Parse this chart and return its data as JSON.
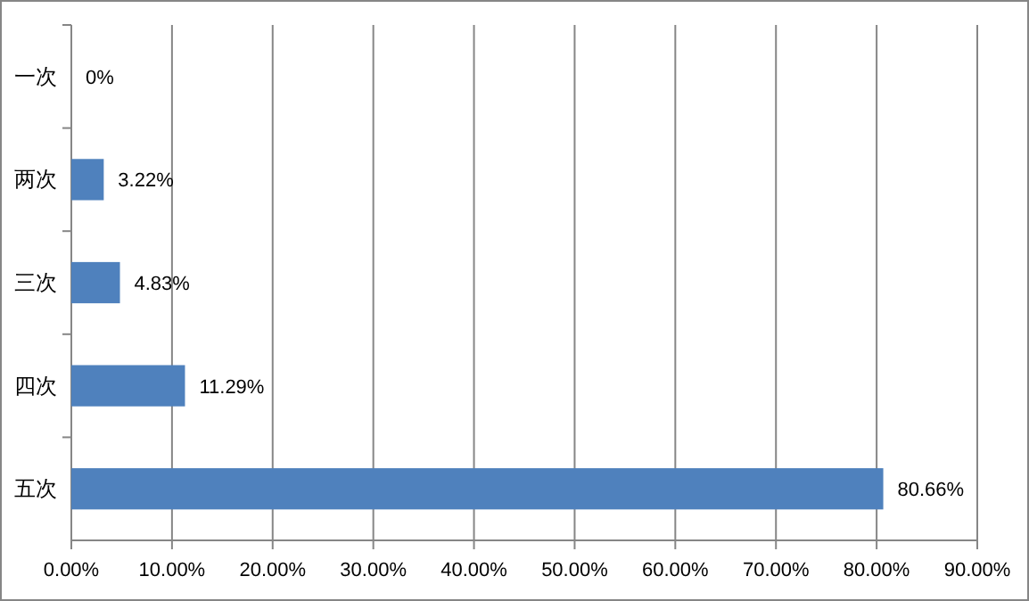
{
  "chart_data": {
    "type": "bar",
    "orientation": "horizontal",
    "categories": [
      "一次",
      "两次",
      "三次",
      "四次",
      "五次"
    ],
    "values": [
      0,
      3.22,
      4.83,
      11.29,
      80.66
    ],
    "value_labels": [
      "0%",
      "3.22%",
      "4.83%",
      "11.29%",
      "80.66%"
    ],
    "color": "#4f81bd",
    "xlim": [
      0,
      90
    ],
    "xticks": [
      {
        "value": 0,
        "label": "0.00%"
      },
      {
        "value": 10,
        "label": "10.00%"
      },
      {
        "value": 20,
        "label": "20.00%"
      },
      {
        "value": 30,
        "label": "30.00%"
      },
      {
        "value": 40,
        "label": "40.00%"
      },
      {
        "value": 50,
        "label": "50.00%"
      },
      {
        "value": 60,
        "label": "60.00%"
      },
      {
        "value": 70,
        "label": "70.00%"
      },
      {
        "value": 80,
        "label": "80.00%"
      },
      {
        "value": 90,
        "label": "90.00%"
      }
    ],
    "grid": "x"
  }
}
